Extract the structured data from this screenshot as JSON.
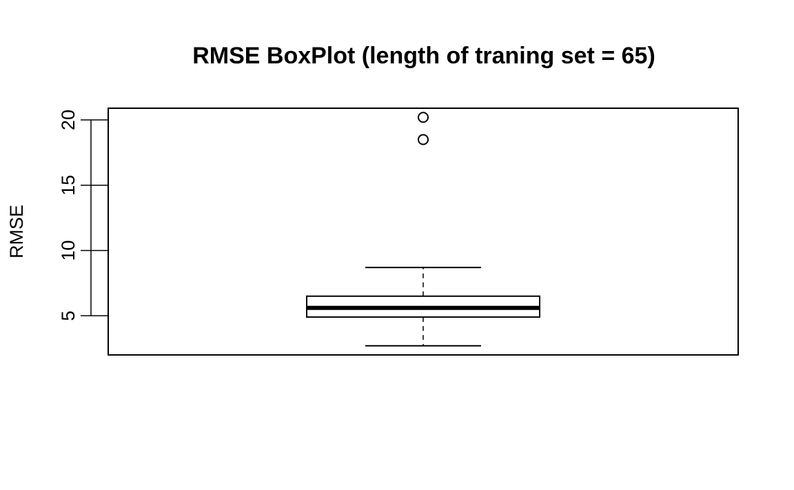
{
  "chart_data": {
    "type": "boxplot",
    "title": "RMSE BoxPlot (length of traning set = 65)",
    "ylabel": "RMSE",
    "xlabel": "",
    "ylim": [
      2.0,
      20.9
    ],
    "yticks": [
      5,
      10,
      15,
      20
    ],
    "grid": false,
    "box": {
      "whisker_low": 2.7,
      "q1": 4.9,
      "median": 5.6,
      "q3": 6.5,
      "whisker_high": 8.7,
      "outliers": [
        18.5,
        20.2
      ]
    }
  }
}
